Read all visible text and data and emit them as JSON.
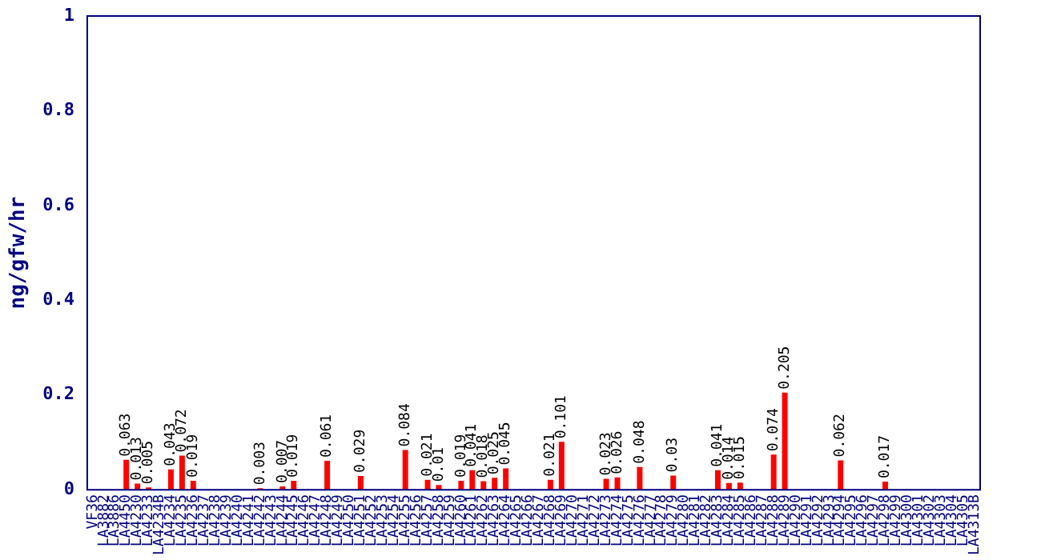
{
  "chart_data": {
    "type": "bar",
    "ylabel": "ng/gfw/hr",
    "categories": [
      "VF36",
      "LA3882",
      "LA3886",
      "LA4450",
      "LA4230",
      "LA4233",
      "LA4234B",
      "LA4234",
      "LA4235",
      "LA4236",
      "LA4237",
      "LA4238",
      "LA4239",
      "LA4240",
      "LA4241",
      "LA4242",
      "LA4243",
      "LA4244",
      "LA4245",
      "LA4246",
      "LA4247",
      "LA4248",
      "LA4249",
      "LA4250",
      "LA4251",
      "LA4252",
      "LA4253",
      "LA4254",
      "LA4255",
      "LA4256",
      "LA4257",
      "LA4258",
      "LA4259",
      "LA4260",
      "LA4261",
      "LA4262",
      "LA4263",
      "LA4264",
      "LA4265",
      "LA4266",
      "LA4267",
      "LA4268",
      "LA4269",
      "LA4270",
      "LA4271",
      "LA4272",
      "LA4273",
      "LA4274",
      "LA4275",
      "LA4276",
      "LA4277",
      "LA4278",
      "LA4279",
      "LA4280",
      "LA4281",
      "LA4282",
      "LA4283",
      "LA4284",
      "LA4285",
      "LA4286",
      "LA4287",
      "LA4288",
      "LA4289",
      "LA4290",
      "LA4291",
      "LA4292",
      "LA4293",
      "LA4294",
      "LA4295",
      "LA4296",
      "LA4297",
      "LA4298",
      "LA4299",
      "LA4300",
      "LA4301",
      "LA4302",
      "LA4303",
      "LA4304",
      "LA4305",
      "LA4313B"
    ],
    "values": [
      0,
      0,
      0,
      0.063,
      0.013,
      0.005,
      0,
      0.043,
      0.072,
      0.019,
      0,
      0,
      0,
      0,
      0,
      0.003,
      0,
      0.007,
      0.019,
      0,
      0,
      0.061,
      0,
      0,
      0.029,
      0,
      0,
      0,
      0.084,
      0,
      0.021,
      0.01,
      0,
      0.019,
      0.041,
      0.018,
      0.025,
      0.045,
      0,
      0,
      0,
      0.021,
      0.101,
      0,
      0,
      0,
      0.023,
      0.026,
      0,
      0.048,
      0,
      0,
      0.03,
      0,
      0,
      0,
      0.041,
      0.014,
      0.015,
      0,
      0,
      0.074,
      0.205,
      0,
      0,
      0,
      0,
      0.062,
      0,
      0,
      0,
      0.017,
      0,
      0,
      0,
      0,
      0,
      0,
      0,
      0
    ],
    "value_labels": [
      null,
      null,
      null,
      "0.063",
      "0.013",
      "0.005",
      null,
      "0.043",
      "0.072",
      "0.019",
      null,
      null,
      null,
      null,
      null,
      "0.003",
      null,
      "0.007",
      "0.019",
      null,
      null,
      "0.061",
      null,
      null,
      "0.029",
      null,
      null,
      null,
      "0.084",
      null,
      "0.021",
      "0.01",
      null,
      "0.019",
      "0.041",
      "0.018",
      "0.025",
      "0.045",
      null,
      null,
      null,
      "0.021",
      "0.101",
      null,
      null,
      null,
      "0.023",
      "0.026",
      null,
      "0.048",
      null,
      null,
      "0.03",
      null,
      null,
      null,
      "0.041",
      "0.014",
      "0.015",
      null,
      null,
      "0.074",
      "0.205",
      null,
      null,
      null,
      null,
      "0.062",
      null,
      null,
      null,
      "0.017",
      null,
      null,
      null,
      null,
      null,
      null,
      null,
      null
    ],
    "color": "#ff0000",
    "ylim": [
      0,
      1
    ],
    "yticks": [
      0,
      0.2,
      0.4,
      0.6,
      0.8,
      1
    ],
    "grid": false,
    "legend": false
  }
}
